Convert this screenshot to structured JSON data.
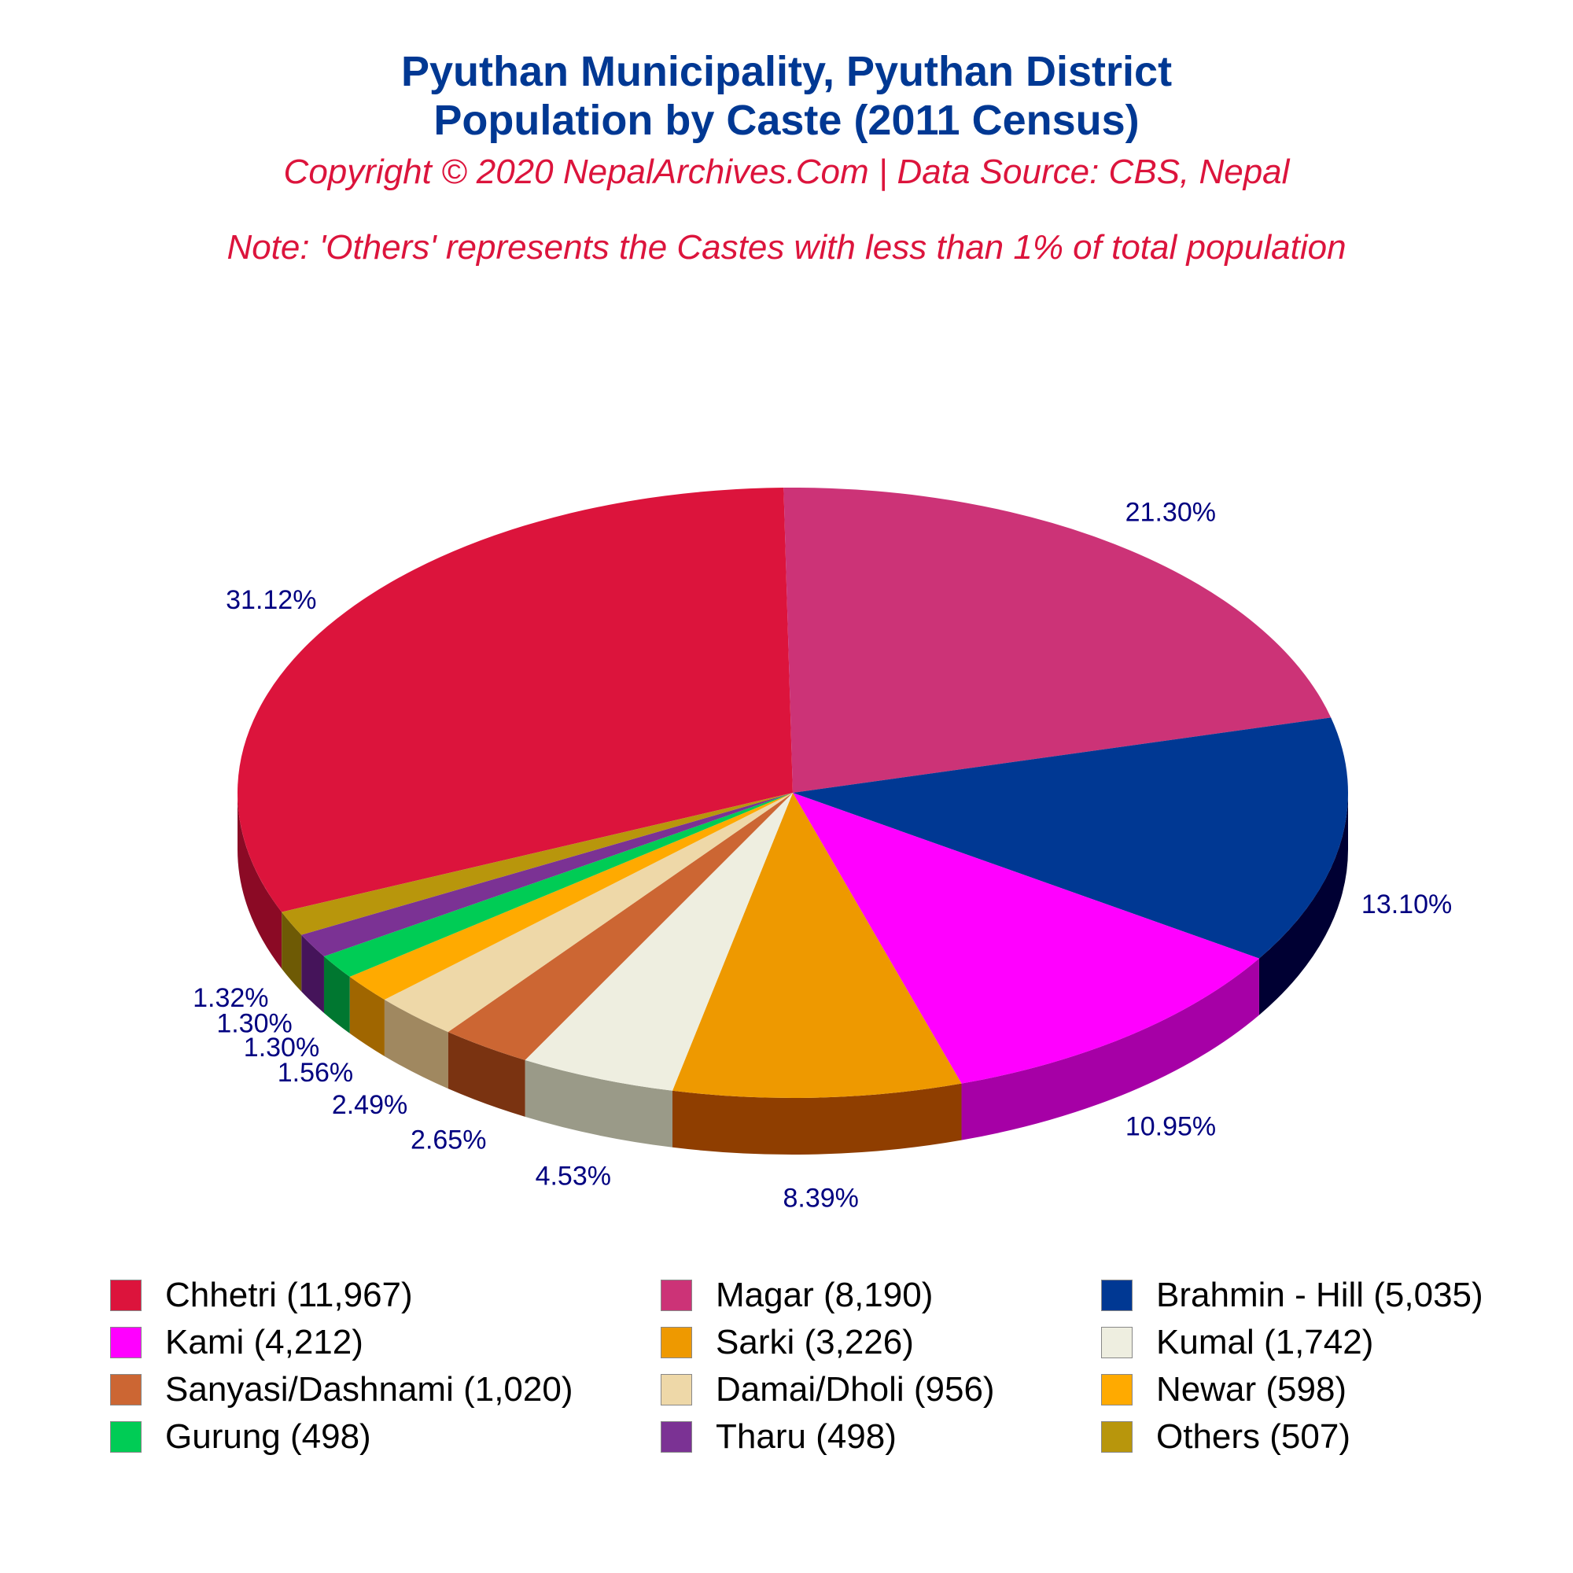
{
  "header": {
    "title_line1": "Pyuthan Municipality, Pyuthan District",
    "title_line2": "Population by Caste (2011 Census)",
    "copyright": "Copyright © 2020 NepalArchives.Com | Data Source: CBS, Nepal",
    "note": "Note: 'Others' represents the Castes with less than 1% of total population"
  },
  "chart_data": {
    "type": "pie",
    "style": "3d",
    "legend_position": "bottom",
    "slices": [
      {
        "label": "Chhetri (11,967)",
        "value": 11967,
        "percent_label": "31.12%",
        "color": "#DC143C",
        "side_color": "#8B0A25"
      },
      {
        "label": "Magar (8,190)",
        "value": 8190,
        "percent_label": "21.30%",
        "color": "#CC3377",
        "side_color": "#6E0022"
      },
      {
        "label": "Brahmin - Hill (5,035)",
        "value": 5035,
        "percent_label": "13.10%",
        "color": "#003893",
        "side_color": "#000033"
      },
      {
        "label": "Kami (4,212)",
        "value": 4212,
        "percent_label": "10.95%",
        "color": "#FF00FF",
        "side_color": "#A600A6"
      },
      {
        "label": "Sarki (3,226)",
        "value": 3226,
        "percent_label": "8.39%",
        "color": "#EE9900",
        "side_color": "#8F3E00"
      },
      {
        "label": "Kumal (1,742)",
        "value": 1742,
        "percent_label": "4.53%",
        "color": "#EEEEE0",
        "side_color": "#9A9A88"
      },
      {
        "label": "Sanyasi/Dashnami (1,020)",
        "value": 1020,
        "percent_label": "2.65%",
        "color": "#CC6633",
        "side_color": "#7A3311"
      },
      {
        "label": "Damai/Dholi (956)",
        "value": 956,
        "percent_label": "2.49%",
        "color": "#EED8A8",
        "side_color": "#A08860"
      },
      {
        "label": "Newar (598)",
        "value": 598,
        "percent_label": "1.56%",
        "color": "#FFAA00",
        "side_color": "#A06600"
      },
      {
        "label": "Gurung (498)",
        "value": 498,
        "percent_label": "1.30%",
        "color": "#00CC55",
        "side_color": "#007730"
      },
      {
        "label": "Tharu (498)",
        "value": 498,
        "percent_label": "1.30%",
        "color": "#7B3294",
        "side_color": "#45145A"
      },
      {
        "label": "Others (507)",
        "value": 507,
        "percent_label": "1.32%",
        "color": "#B8960C",
        "side_color": "#6E5A05"
      }
    ]
  }
}
